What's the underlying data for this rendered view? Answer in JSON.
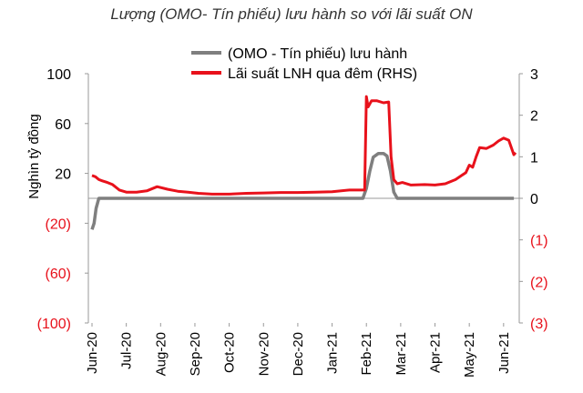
{
  "chart_data": {
    "type": "line",
    "title": "Lượng (OMO- Tín phiếu) lưu hành so với lãi suất ON",
    "ylabel": "Nghìn tỷ đồng",
    "xlabel": "",
    "categories": [
      "Jun-20",
      "Jul-20",
      "Aug-20",
      "Sep-20",
      "Oct-20",
      "Nov-20",
      "Dec-20",
      "Jan-21",
      "Feb-21",
      "Mar-21",
      "Apr-21",
      "May-21",
      "Jun-21"
    ],
    "ylim": [
      -100,
      100
    ],
    "y2lim": [
      -3,
      3
    ],
    "yticks": [
      "100",
      "60",
      "20",
      "(20)",
      "(60)",
      "(100)"
    ],
    "y2ticks": [
      "3",
      "2",
      "1",
      "0",
      "(1)",
      "(2)",
      "(3)"
    ],
    "legend_position": "top",
    "series": [
      {
        "name": "(OMO - Tín phiếu) lưu hành",
        "axis": "left",
        "color": "#7f7f7f",
        "x": [
          0,
          0.06,
          0.12,
          0.2,
          0.5,
          1,
          2,
          3,
          4,
          5,
          6,
          7,
          7.9,
          8.0,
          8.1,
          8.2,
          8.35,
          8.5,
          8.6,
          8.7,
          8.8,
          8.9,
          9,
          10,
          11,
          12,
          12.3
        ],
        "values": [
          -25,
          -20,
          -8,
          0,
          0,
          0,
          0,
          0,
          0,
          0,
          0,
          0,
          0,
          8,
          22,
          33,
          36,
          36,
          34,
          22,
          5,
          0,
          0,
          0,
          0,
          0,
          0
        ]
      },
      {
        "name": "Lãi suất LNH qua đêm (RHS)",
        "axis": "right",
        "color": "#e8111b",
        "x": [
          0,
          0.1,
          0.2,
          0.3,
          0.45,
          0.6,
          0.8,
          1.0,
          1.3,
          1.6,
          1.9,
          2.2,
          2.5,
          2.8,
          3.1,
          3.5,
          4,
          4.5,
          5,
          5.5,
          6,
          6.5,
          7,
          7.5,
          7.95,
          8.0,
          8.05,
          8.15,
          8.3,
          8.5,
          8.65,
          8.72,
          8.8,
          8.9,
          9.05,
          9.3,
          9.7,
          10,
          10.3,
          10.6,
          10.9,
          11.0,
          11.1,
          11.2,
          11.3,
          11.5,
          11.7,
          11.85,
          12.0,
          12.15,
          12.3,
          12.35
        ],
        "values": [
          0.55,
          0.52,
          0.45,
          0.42,
          0.38,
          0.33,
          0.2,
          0.15,
          0.15,
          0.18,
          0.28,
          0.22,
          0.17,
          0.15,
          0.12,
          0.1,
          0.1,
          0.12,
          0.13,
          0.14,
          0.14,
          0.15,
          0.16,
          0.2,
          0.2,
          2.45,
          2.2,
          2.35,
          2.35,
          2.3,
          2.32,
          1.0,
          0.45,
          0.35,
          0.38,
          0.32,
          0.33,
          0.32,
          0.35,
          0.45,
          0.62,
          0.8,
          0.75,
          1.0,
          1.22,
          1.2,
          1.28,
          1.38,
          1.45,
          1.4,
          1.05,
          1.1
        ]
      }
    ]
  }
}
